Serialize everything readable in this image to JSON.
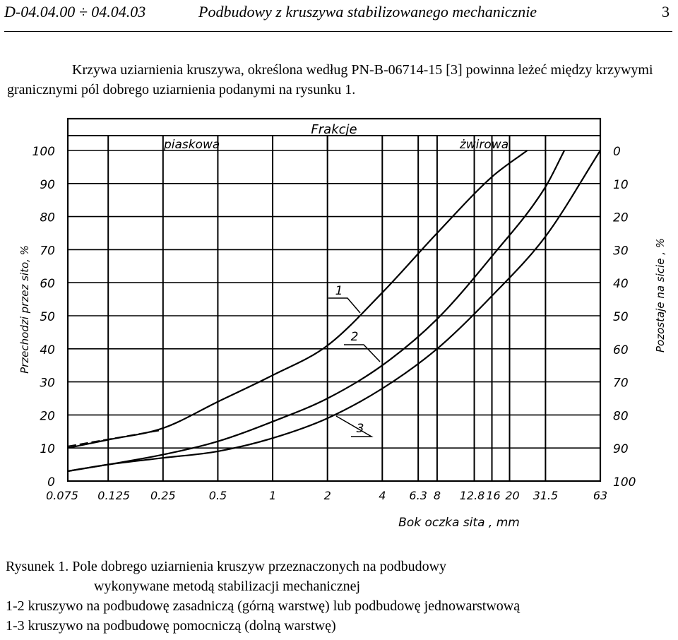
{
  "header": {
    "code": "D-04.04.00 ÷ 04.04.03",
    "title": "Podbudowy z kruszywa stabilizowanego mechanicznie",
    "page_number": "3"
  },
  "intro_text": "Krzywa uziarnienia kruszywa, określona według PN-B-06714-15 [3] powinna leżeć między krzywymi granicznymi pól dobrego uziarnienia podanymi na rysunku 1.",
  "chart_data": {
    "type": "line",
    "x_scale": "log",
    "xlim": [
      0.075,
      63
    ],
    "ylim": [
      0,
      100
    ],
    "x_tick_labels": [
      "0.075",
      "0.125",
      "0.25",
      "0.5",
      "1",
      "2",
      "4",
      "6.3",
      "8",
      "12.8",
      "16",
      "20",
      "31.5",
      "63"
    ],
    "y_left_ticks": [
      "0",
      "10",
      "20",
      "30",
      "40",
      "50",
      "60",
      "70",
      "80",
      "90",
      "100"
    ],
    "y_right_ticks": [
      "100",
      "90",
      "80",
      "70",
      "60",
      "50",
      "40",
      "30",
      "20",
      "10",
      "0"
    ],
    "xlabel": "Bok oczka sita , mm",
    "ylabel_left": "Przechodzi przez sito, %",
    "ylabel_right": "Pozostaje na sicie , %",
    "fractions_header": "Frakcje",
    "fraction_sand": "piaskowa",
    "fraction_gravel": "żwirowa",
    "grid": true,
    "series": [
      {
        "name": "1",
        "x": [
          0.075,
          0.125,
          0.25,
          0.5,
          1,
          2,
          4,
          8,
          16,
          25
        ],
        "y": [
          10,
          12.5,
          16,
          24,
          32,
          41,
          57,
          75,
          92,
          100
        ]
      },
      {
        "name": "2",
        "x": [
          0.075,
          0.125,
          0.25,
          0.5,
          1,
          2,
          4,
          8,
          16,
          31.5,
          40
        ],
        "y": [
          3,
          5,
          8,
          12,
          18,
          25,
          35,
          49,
          68,
          89,
          100
        ]
      },
      {
        "name": "3",
        "x": [
          0.075,
          0.125,
          0.25,
          0.5,
          1,
          2,
          4,
          8,
          16,
          31.5,
          63
        ],
        "y": [
          3,
          5,
          7,
          9,
          13,
          19,
          28,
          40,
          56,
          74,
          100
        ]
      }
    ],
    "dashed_segment": {
      "x": [
        0.075,
        0.25
      ],
      "y": [
        10.5,
        15.5
      ]
    }
  },
  "caption": {
    "line1": "Rysunek 1. Pole dobrego uziarnienia kruszyw przeznaczonych na podbudowy",
    "line2": "wykonywane metodą stabilizacji mechanicznej",
    "line3": "1-2  kruszywo na podbudowę zasadniczą (górną warstwę) lub podbudowę jednowarstwową",
    "line4": "1-3  kruszywo na podbudowę pomocniczą (dolną warstwę)"
  }
}
